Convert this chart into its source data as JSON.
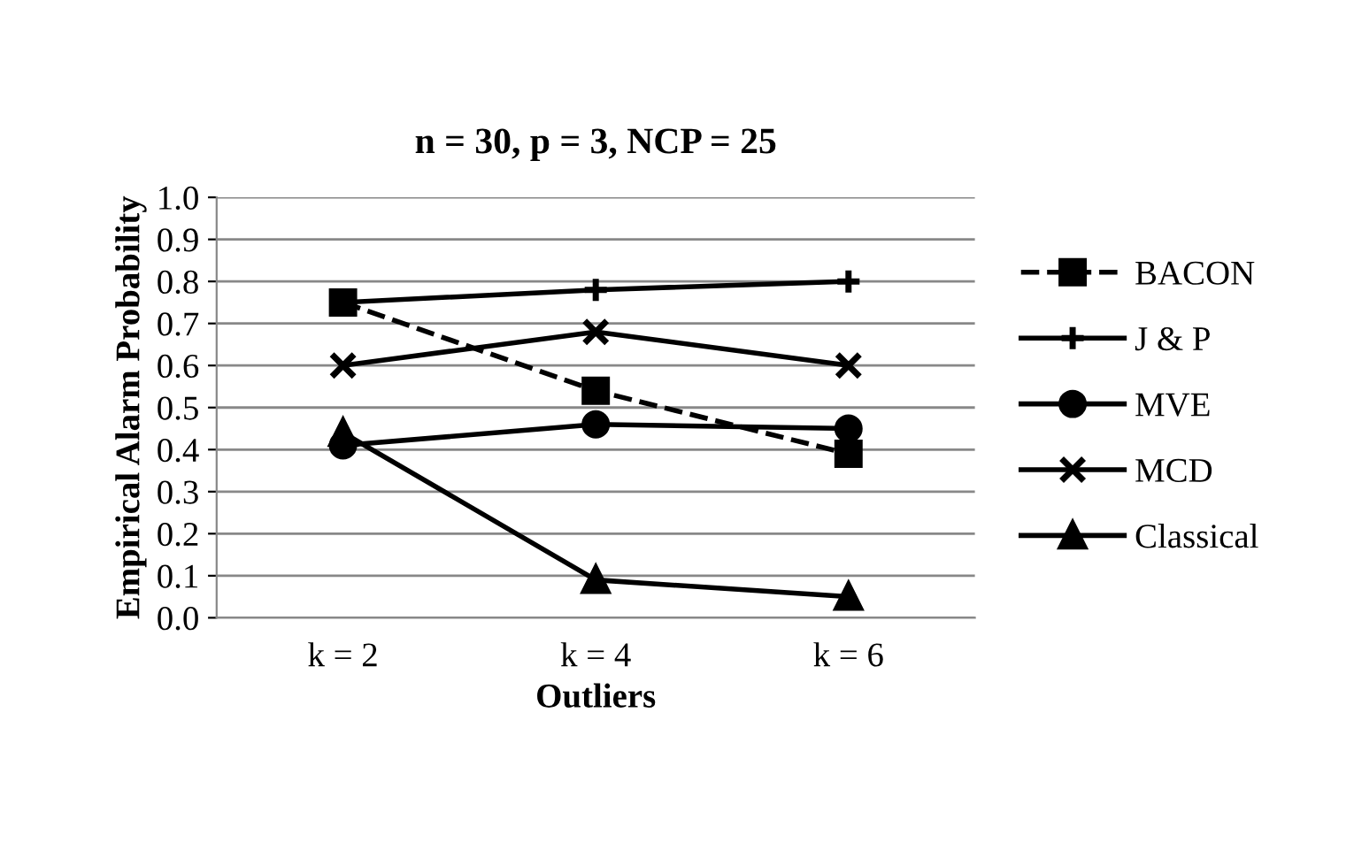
{
  "chart_data": {
    "type": "line",
    "title": "n = 30, p = 3, NCP = 25",
    "xlabel": "Outliers",
    "ylabel": "Empirical Alarm Probability",
    "categories": [
      "k = 2",
      "k = 4",
      "k = 6"
    ],
    "series": [
      {
        "name": "BACON",
        "color": "#000000",
        "values": [
          0.75,
          0.54,
          0.39
        ],
        "marker": "square",
        "line_style": "dashed"
      },
      {
        "name": "J & P",
        "color": "#000000",
        "values": [
          0.75,
          0.78,
          0.8
        ],
        "marker": "cross",
        "line_style": "solid"
      },
      {
        "name": "MVE",
        "color": "#000000",
        "values": [
          0.41,
          0.46,
          0.45
        ],
        "marker": "circle",
        "line_style": "solid"
      },
      {
        "name": "MCD",
        "color": "#000000",
        "values": [
          0.6,
          0.68,
          0.6
        ],
        "marker": "x",
        "line_style": "solid"
      },
      {
        "name": "Classical",
        "color": "#000000",
        "values": [
          0.44,
          0.09,
          0.05
        ],
        "marker": "triangle",
        "line_style": "solid"
      }
    ],
    "ylim": [
      0,
      1
    ],
    "yticks": [
      {
        "value": 0,
        "label": "0.0"
      },
      0.1,
      0.2,
      0.3,
      0.4,
      0.5,
      0.6,
      0.7,
      0.8,
      0.9,
      {
        "value": 1,
        "label": "1.0"
      }
    ],
    "grid": "y",
    "legend": "right"
  }
}
